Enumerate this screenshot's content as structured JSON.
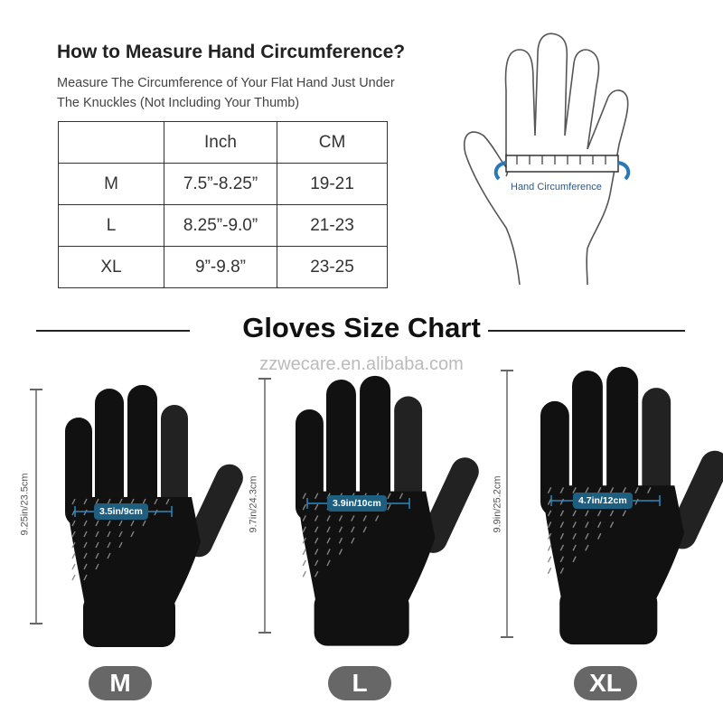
{
  "header": {
    "title": "How to Measure Hand Circumference?",
    "subtitle_lines": [
      "Measure The Circumference of Your Flat Hand Just Under",
      "The Knuckles (Not Including Your Thumb)"
    ]
  },
  "size_table": {
    "headers": [
      "",
      "Inch",
      "CM"
    ],
    "rows": [
      [
        "M",
        "7.5”-8.25”",
        "19-21"
      ],
      [
        "L",
        "8.25”-9.0”",
        "21-23"
      ],
      [
        "XL",
        "9”-9.8”",
        "23-25"
      ]
    ]
  },
  "diagram": {
    "label": "Hand Circumference",
    "accent": "#2a78b8"
  },
  "chart_title": "Gloves Size Chart",
  "watermark": "zzwecare.en.alibaba.com",
  "gloves": [
    {
      "size": "M",
      "length": "9.25in/23.5cm",
      "width": "3.5in/9cm"
    },
    {
      "size": "L",
      "length": "9.7in/24.3cm",
      "width": "3.9in/10cm"
    },
    {
      "size": "XL",
      "length": "9.9in/25.2cm",
      "width": "4.7in/12cm"
    }
  ],
  "colors": {
    "badge": "#676767",
    "width_label": "#1e5f80",
    "glove": "#111111"
  }
}
